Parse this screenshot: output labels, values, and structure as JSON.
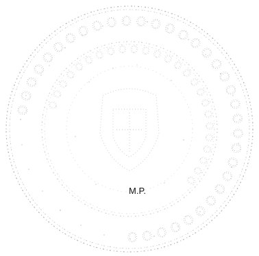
{
  "stamp": {
    "kind": "faded-round-seal",
    "ink_color": "#8a8a8a",
    "mark_label": "M.P."
  }
}
